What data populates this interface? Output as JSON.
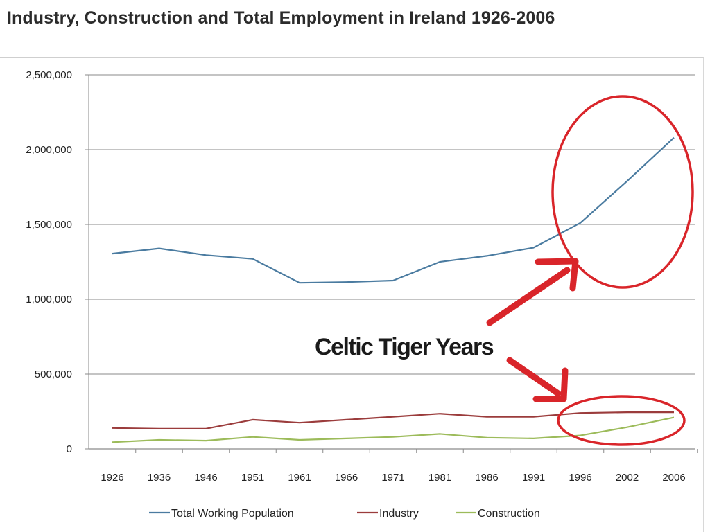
{
  "chart_data": {
    "type": "line",
    "title": "Industry, Construction and Total Employment in Ireland 1926-2006",
    "categories": [
      "1926",
      "1936",
      "1946",
      "1951",
      "1961",
      "1966",
      "1971",
      "1981",
      "1986",
      "1991",
      "1996",
      "2002",
      "2006"
    ],
    "series": [
      {
        "name": "Total Working Population",
        "color": "#4a7ba0",
        "values": [
          1305000,
          1340000,
          1295000,
          1270000,
          1110000,
          1115000,
          1125000,
          1250000,
          1290000,
          1345000,
          1510000,
          1790000,
          2080000
        ]
      },
      {
        "name": "Industry",
        "color": "#9b3c3c",
        "values": [
          140000,
          135000,
          135000,
          195000,
          175000,
          195000,
          215000,
          235000,
          215000,
          215000,
          240000,
          245000,
          245000
        ]
      },
      {
        "name": "Construction",
        "color": "#9cbb5a",
        "values": [
          45000,
          60000,
          55000,
          80000,
          60000,
          70000,
          80000,
          100000,
          75000,
          70000,
          90000,
          145000,
          210000
        ]
      }
    ],
    "ylim": [
      0,
      2500000
    ],
    "yticks": [
      0,
      500000,
      1000000,
      1500000,
      2000000,
      2500000
    ],
    "ytick_labels": [
      "0",
      "500,000",
      "1,000,000",
      "1,500,000",
      "2,000,000",
      "2,500,000"
    ],
    "grid": true,
    "legend_position": "bottom",
    "annotations": [
      {
        "text": "Celtic Tiger Years",
        "color": "#d9252a"
      }
    ]
  }
}
